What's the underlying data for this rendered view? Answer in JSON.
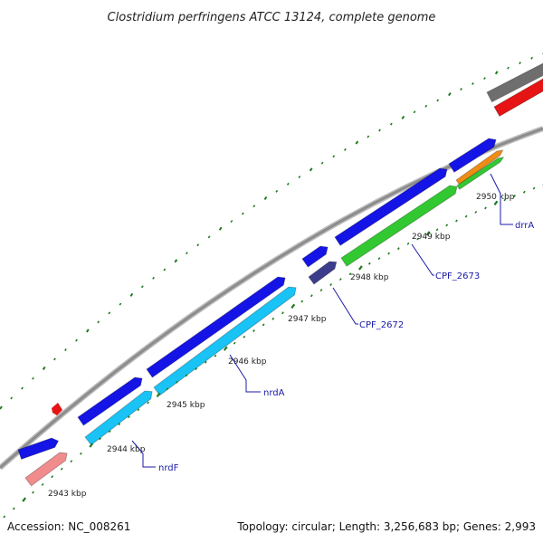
{
  "title": "Clostridium perfringens ATCC 13124, complete genome",
  "footer": {
    "accession": "Accession: NC_008261",
    "summary": "Topology: circular; Length: 3,256,683 bp; Genes: 2,993"
  },
  "colors": {
    "backbone": "#8c8c8c",
    "tick": "#1e7a1e",
    "blue": "#1414e6",
    "cyan": "#19c3f5",
    "green": "#32c832",
    "salmon": "#f08c8c",
    "navy": "#3c3c8c",
    "orange": "#f08c14",
    "grey": "#6e6e6e",
    "red": "#e61414",
    "label": "#1a1aa8"
  },
  "tick_labels": [
    "2943 kbp",
    "2944 kbp",
    "2945 kbp",
    "2946 kbp",
    "2947 kbp",
    "2948 kbp",
    "2949 kbp",
    "2950 kbp"
  ],
  "gene_labels": [
    "nrdF",
    "nrdA",
    "CPF_2672",
    "CPF_2673",
    "drrA"
  ]
}
